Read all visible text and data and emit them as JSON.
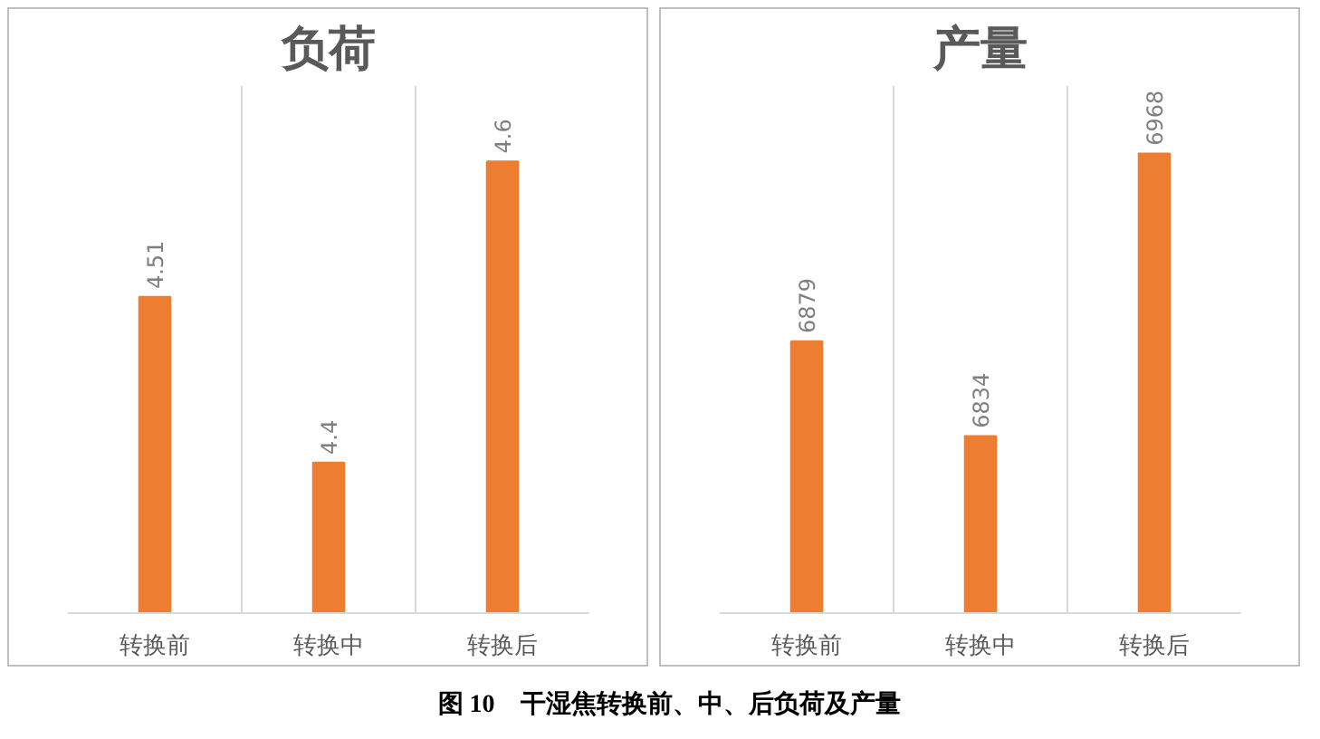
{
  "chart_data": [
    {
      "type": "bar",
      "title": "负荷",
      "categories": [
        "转换前",
        "转换中",
        "转换后"
      ],
      "values": [
        4.51,
        4.4,
        4.6
      ],
      "color": "#ed7d31",
      "ylim": [
        4.3,
        4.65
      ],
      "data_labels": true,
      "tick_labels": "x",
      "grid": "x",
      "annotations": [
        "图 10　干湿焦转换前、中、后负荷及产量"
      ]
    },
    {
      "type": "bar",
      "title": "产量",
      "categories": [
        "转换前",
        "转换中",
        "转换后"
      ],
      "values": [
        6879,
        6834,
        6968
      ],
      "color": "#ed7d31",
      "ylim": [
        6750,
        7000
      ],
      "data_labels": true,
      "tick_labels": "x",
      "grid": "x"
    }
  ]
}
